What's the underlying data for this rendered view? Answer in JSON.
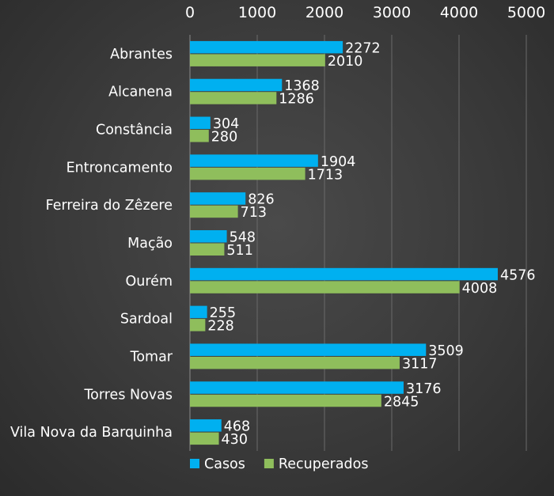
{
  "chart_data": {
    "type": "bar",
    "orientation": "horizontal",
    "categories": [
      "Abrantes",
      "Alcanena",
      "Constância",
      "Entroncamento",
      "Ferreira do Zêzere",
      "Mação",
      "Ourém",
      "Sardoal",
      "Tomar",
      "Torres Novas",
      "Vila Nova da Barquinha"
    ],
    "series": [
      {
        "name": "Casos",
        "color": "#00b0f0",
        "values": [
          2272,
          1368,
          304,
          1904,
          826,
          548,
          4576,
          255,
          3509,
          3176,
          468
        ]
      },
      {
        "name": "Recuperados",
        "color": "#8fbe5c",
        "values": [
          2010,
          1286,
          280,
          1713,
          713,
          511,
          4008,
          228,
          3117,
          2845,
          430
        ]
      }
    ],
    "xlim": [
      0,
      5000
    ],
    "xticks": [
      "0",
      "1000",
      "2000",
      "3000",
      "4000",
      "5000"
    ],
    "x_axis_position": "top",
    "grid": true,
    "legend_position": "bottom-left"
  }
}
